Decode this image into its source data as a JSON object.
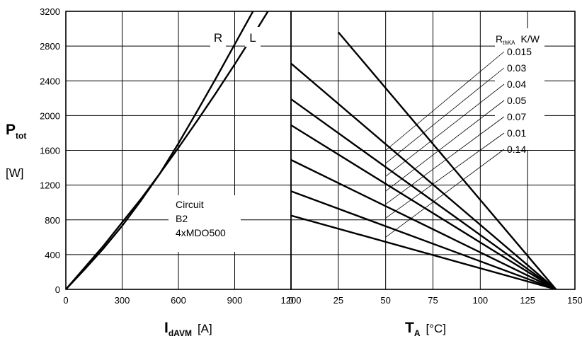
{
  "chart_data": [
    {
      "type": "line",
      "title": "",
      "xlabel": "I",
      "xlabel_sub": "dAVM",
      "xunit": "[A]",
      "ylabel": "P",
      "ylabel_sub": "tot",
      "yunit": "[W]",
      "xlim": [
        0,
        1200
      ],
      "ylim": [
        0,
        3200
      ],
      "xticks": [
        "0",
        "300",
        "600",
        "900",
        "1200"
      ],
      "yticks": [
        "0",
        "400",
        "800",
        "1200",
        "1600",
        "2000",
        "2400",
        "2800",
        "3200"
      ],
      "grid": true,
      "series": [
        {
          "name": "R",
          "points": [
            [
              0,
              0
            ],
            [
              100,
              230
            ],
            [
              200,
              470
            ],
            [
              300,
              730
            ],
            [
              400,
              1020
            ],
            [
              500,
              1330
            ],
            [
              600,
              1680
            ],
            [
              700,
              2050
            ],
            [
              800,
              2430
            ],
            [
              900,
              2820
            ],
            [
              1000,
              3210
            ],
            [
              1100,
              3610
            ]
          ]
        },
        {
          "name": "L",
          "points": [
            [
              0,
              0
            ],
            [
              100,
              250
            ],
            [
              200,
              500
            ],
            [
              300,
              770
            ],
            [
              400,
              1040
            ],
            [
              500,
              1330
            ],
            [
              600,
              1630
            ],
            [
              700,
              1940
            ],
            [
              800,
              2260
            ],
            [
              900,
              2590
            ],
            [
              1000,
              2930
            ],
            [
              1100,
              3280
            ],
            [
              1200,
              3640
            ]
          ]
        }
      ],
      "annotation": {
        "lines": [
          "Circuit",
          "B2",
          "4xMDO500"
        ]
      }
    },
    {
      "type": "line",
      "title": "",
      "xlabel": "T",
      "xlabel_sub": "A",
      "xunit": "[°C]",
      "xlim": [
        0,
        150
      ],
      "ylim": [
        0,
        3200
      ],
      "xticks": [
        "0",
        "25",
        "50",
        "75",
        "100",
        "125",
        "150"
      ],
      "grid": true,
      "legend_title": "R",
      "legend_title_sub": "thKA",
      "legend_title_unit": "K/W",
      "series": [
        {
          "name": "0.015",
          "points": [
            [
              25,
              2960
            ],
            [
              140,
              0
            ]
          ]
        },
        {
          "name": "0.03",
          "points": [
            [
              0,
              2600
            ],
            [
              140,
              0
            ]
          ]
        },
        {
          "name": "0.04",
          "points": [
            [
              0,
              2190
            ],
            [
              140,
              0
            ]
          ]
        },
        {
          "name": "0.05",
          "points": [
            [
              0,
              1890
            ],
            [
              140,
              0
            ]
          ]
        },
        {
          "name": "0.07",
          "points": [
            [
              0,
              1490
            ],
            [
              140,
              0
            ]
          ]
        },
        {
          "name": "0.01",
          "points": [
            [
              0,
              1130
            ],
            [
              140,
              0
            ]
          ]
        },
        {
          "name": "0.14",
          "points": [
            [
              0,
              850
            ],
            [
              140,
              0
            ]
          ]
        }
      ]
    }
  ]
}
